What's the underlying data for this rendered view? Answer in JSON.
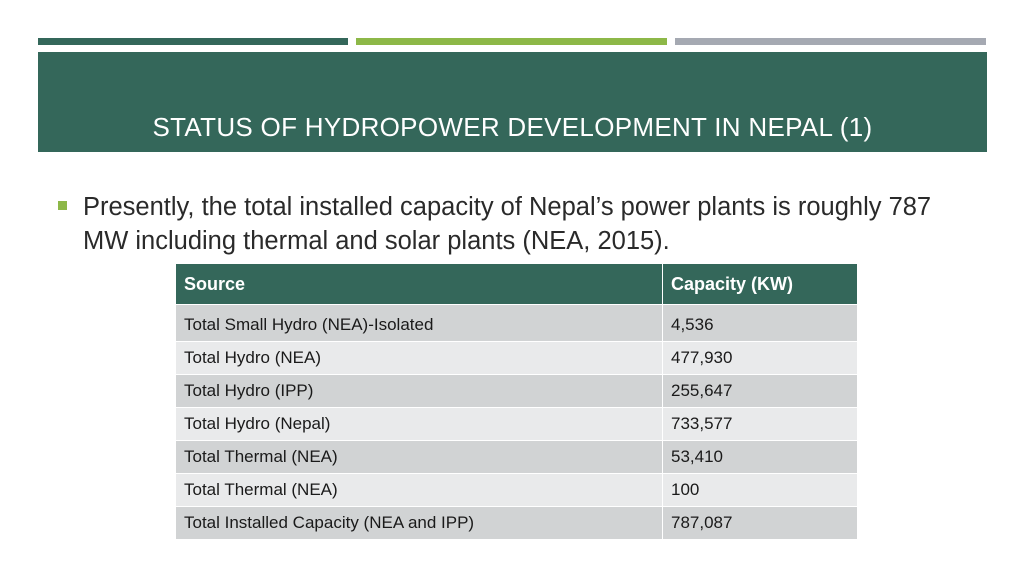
{
  "slide": {
    "title": "STATUS OF HYDROPOWER DEVELOPMENT IN NEPAL (1)",
    "bullet": "Presently, the total installed capacity of Nepal’s power plants is roughly 787 MW including thermal and solar plants (NEA, 2015).",
    "accent_colors": {
      "header_green": "#34675a",
      "lime": "#8db848",
      "gray": "#a5a9b2"
    }
  },
  "table": {
    "headers": [
      "Source",
      "Capacity (KW)"
    ],
    "rows": [
      [
        "Total Small Hydro (NEA)-Isolated",
        "4,536"
      ],
      [
        "Total Hydro (NEA)",
        "477,930"
      ],
      [
        "Total Hydro (IPP)",
        "255,647"
      ],
      [
        "Total Hydro (Nepal)",
        "733,577"
      ],
      [
        "Total Thermal (NEA)",
        "53,410"
      ],
      [
        "Total Thermal (NEA)",
        "100"
      ],
      [
        "Total Installed Capacity (NEA and IPP)",
        "787,087"
      ]
    ]
  }
}
